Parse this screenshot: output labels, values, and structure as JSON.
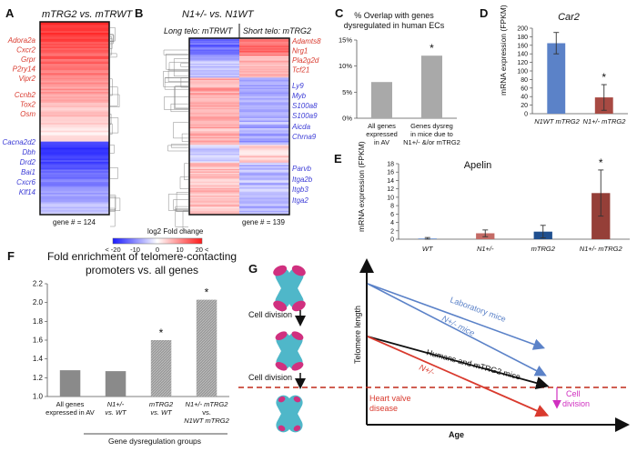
{
  "colors": {
    "red": "#d93a2e",
    "blue": "#3b3bd6",
    "gray": "#a9a9a9",
    "steelblue": "#5b82c8",
    "brick": "#a84a43",
    "chromosome": "#4fb7c9",
    "telomere": "#d0307f",
    "black": "#111111",
    "pink": "#d030c0",
    "dash": "#c02a18"
  },
  "panels": {
    "A": "A",
    "B": "B",
    "C": "C",
    "D": "D",
    "E": "E",
    "F": "F",
    "G": "G"
  },
  "A": {
    "title": "mTRG2 vs. mTRWT",
    "red_genes": [
      "Adora2a",
      "Cxcr2",
      "Grpr",
      "P2ry14",
      "Vipr2",
      "Ccnb2",
      "Tox2",
      "Osm"
    ],
    "blue_genes": [
      "Cacna2d2",
      "Dbh",
      "Drd2",
      "Bai1",
      "Cxcr6",
      "Klf14"
    ],
    "gene_count": "gene # = 124"
  },
  "B": {
    "title": "N1+/- vs. N1WT",
    "long": "Long telo: mTRWT",
    "short": "Short telo: mTRG2",
    "red_genes": [
      "Adamts8",
      "Nrg1",
      "Pla2g2d",
      "Tcf21"
    ],
    "blue_genes": [
      "Ly9",
      "Myb",
      "S100a8",
      "S100a9",
      "Aicda",
      "Chrna9",
      "Parvb",
      "Itga2b",
      "Itgb3",
      "Itga2"
    ],
    "gene_count": "gene # = 139"
  },
  "legend": {
    "title": "log2 Fold change",
    "ticks": [
      "< -20",
      "-10",
      "0",
      "10",
      "20 <"
    ]
  },
  "C": {
    "title_line1": "% Overlap with genes",
    "title_line2": "dysregulated in human ECs",
    "yticks": [
      "0%",
      "5%",
      "10%",
      "15%"
    ],
    "star": "*",
    "cat1": [
      "All genes",
      "expressed",
      "in AV"
    ],
    "cat2": [
      "Genes dysreg",
      "in mice due to",
      "N1+/- &/or mTRG2"
    ]
  },
  "D": {
    "title": "Car2",
    "ylabel": "mRNA expression (FPKM)",
    "yticks": [
      "0",
      "20",
      "40",
      "60",
      "80",
      "100",
      "120",
      "140",
      "160",
      "180",
      "200"
    ],
    "star": "*",
    "cat1": "N1WT mTRG2",
    "cat2": "N1+/- mTRG2"
  },
  "E": {
    "title": "Apelin",
    "ylabel": "mRNA expression (FPKM)",
    "yticks": [
      "0",
      "2",
      "4",
      "6",
      "8",
      "10",
      "12",
      "14",
      "16",
      "18"
    ],
    "star": "*",
    "cats": [
      "WT",
      "N1+/-",
      "mTRG2",
      "N1+/- mTRG2"
    ]
  },
  "F": {
    "title_line1": "Fold enrichment of telomere-contacting",
    "title_line2": "promoters vs. all genes",
    "yticks": [
      "1.0",
      "1.2",
      "1.4",
      "1.6",
      "1.8",
      "2.0",
      "2.2"
    ],
    "cat1": [
      "All genes",
      "expressed in AV"
    ],
    "cat2": [
      "N1+/-",
      "vs. WT"
    ],
    "cat3": [
      "mTRG2",
      "vs. WT"
    ],
    "cat4": [
      "N1+/- mTRG2",
      "vs.",
      "N1WT mTRG2"
    ],
    "group_label": "Gene dysregulation groups",
    "star": "*"
  },
  "G": {
    "cell_division": "Cell division",
    "ylabel": "Telomere length",
    "xlabel": "Age",
    "lab": "Laboratory mice",
    "n1": "N+/- mice",
    "humans": "Humans and mTRG2 mice",
    "n1red": "N+/-",
    "heart1": "Heart valve",
    "heart2": "disease",
    "cd1": "Cell",
    "cd2": "division"
  },
  "chart_data": [
    {
      "panel": "C",
      "type": "bar",
      "title": "% Overlap with genes dysregulated in human ECs",
      "categories": [
        "All genes expressed in AV",
        "Genes dysreg in mice due to N1+/- &/or mTRG2"
      ],
      "values": [
        7.4,
        12.8
      ],
      "ylim": [
        0,
        16
      ],
      "significant": [
        false,
        true
      ]
    },
    {
      "panel": "D",
      "type": "bar",
      "title": "Car2",
      "ylabel": "mRNA expression (FPKM)",
      "categories": [
        "N1WT mTRG2",
        "N1+/- mTRG2"
      ],
      "values": [
        165,
        38
      ],
      "errors": [
        25,
        30
      ],
      "ylim": [
        0,
        200
      ],
      "significant": [
        false,
        true
      ]
    },
    {
      "panel": "E",
      "type": "bar",
      "title": "Apelin",
      "ylabel": "mRNA expression (FPKM)",
      "categories": [
        "WT",
        "N1+/-",
        "mTRG2",
        "N1+/- mTRG2"
      ],
      "values": [
        0.2,
        1.4,
        1.8,
        11
      ],
      "errors": [
        0.2,
        0.8,
        1.5,
        5.5
      ],
      "ylim": [
        0,
        18
      ],
      "significant": [
        false,
        false,
        false,
        true
      ]
    },
    {
      "panel": "F",
      "type": "bar",
      "title": "Fold enrichment of telomere-contacting promoters vs. all genes",
      "categories": [
        "All genes expressed in AV",
        "N1+/- vs. WT",
        "mTRG2 vs. WT",
        "N1+/- mTRG2 vs. N1WT mTRG2"
      ],
      "values": [
        1.28,
        1.27,
        1.6,
        2.03
      ],
      "ylim": [
        1.0,
        2.2
      ],
      "significant": [
        false,
        false,
        true,
        true
      ]
    }
  ]
}
